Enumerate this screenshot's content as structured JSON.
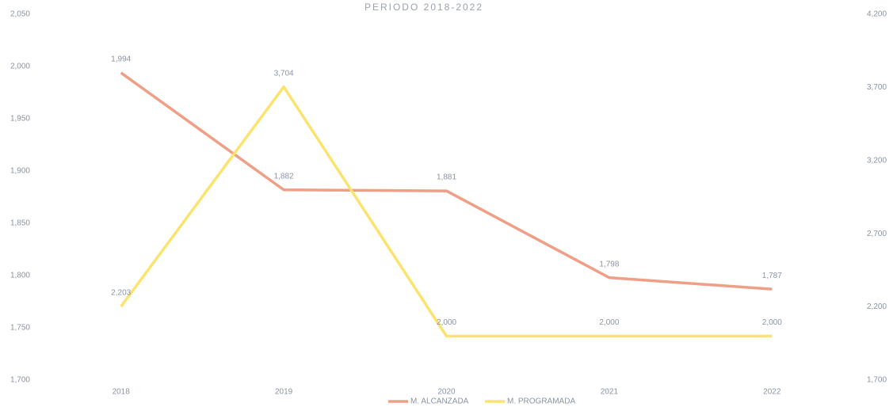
{
  "chart_data": {
    "type": "line",
    "title": "PERIODO 2018-2022",
    "categories": [
      "2018",
      "2019",
      "2020",
      "2021",
      "2022"
    ],
    "series": [
      {
        "name": "M. ALCANZADA",
        "color": "#ef9f86",
        "values": [
          1994,
          1882,
          1881,
          1798,
          1787
        ],
        "value_labels": [
          "1,994",
          "1,882",
          "1,881",
          "1,798",
          "1,787"
        ]
      },
      {
        "name": "M. PROGRAMADA",
        "color": "#fbe36e",
        "axis": "y2",
        "values": [
          2203,
          3704,
          2000,
          2000,
          2000
        ],
        "value_labels": [
          "2,203",
          "3,704",
          "2,000",
          "2,000",
          "2,000"
        ]
      }
    ],
    "ylim": [
      1700,
      2050
    ],
    "yticks": [
      {
        "value": 1700,
        "label": "1,700"
      },
      {
        "value": 1750,
        "label": "1,750"
      },
      {
        "value": 1800,
        "label": "1,800"
      },
      {
        "value": 1850,
        "label": "1,850"
      },
      {
        "value": 1900,
        "label": "1,900"
      },
      {
        "value": 1950,
        "label": "1,950"
      },
      {
        "value": 2000,
        "label": "2,000"
      },
      {
        "value": 2050,
        "label": "2,050"
      }
    ],
    "y2lim": [
      1700,
      4200
    ],
    "y2ticks": [
      {
        "value": 1700,
        "label": "1,700"
      },
      {
        "value": 2200,
        "label": "2,200"
      },
      {
        "value": 2700,
        "label": "2,700"
      },
      {
        "value": 3200,
        "label": "3,200"
      },
      {
        "value": 3700,
        "label": "3,700"
      },
      {
        "value": 4200,
        "label": "4,200"
      }
    ],
    "legend": "bottom"
  }
}
